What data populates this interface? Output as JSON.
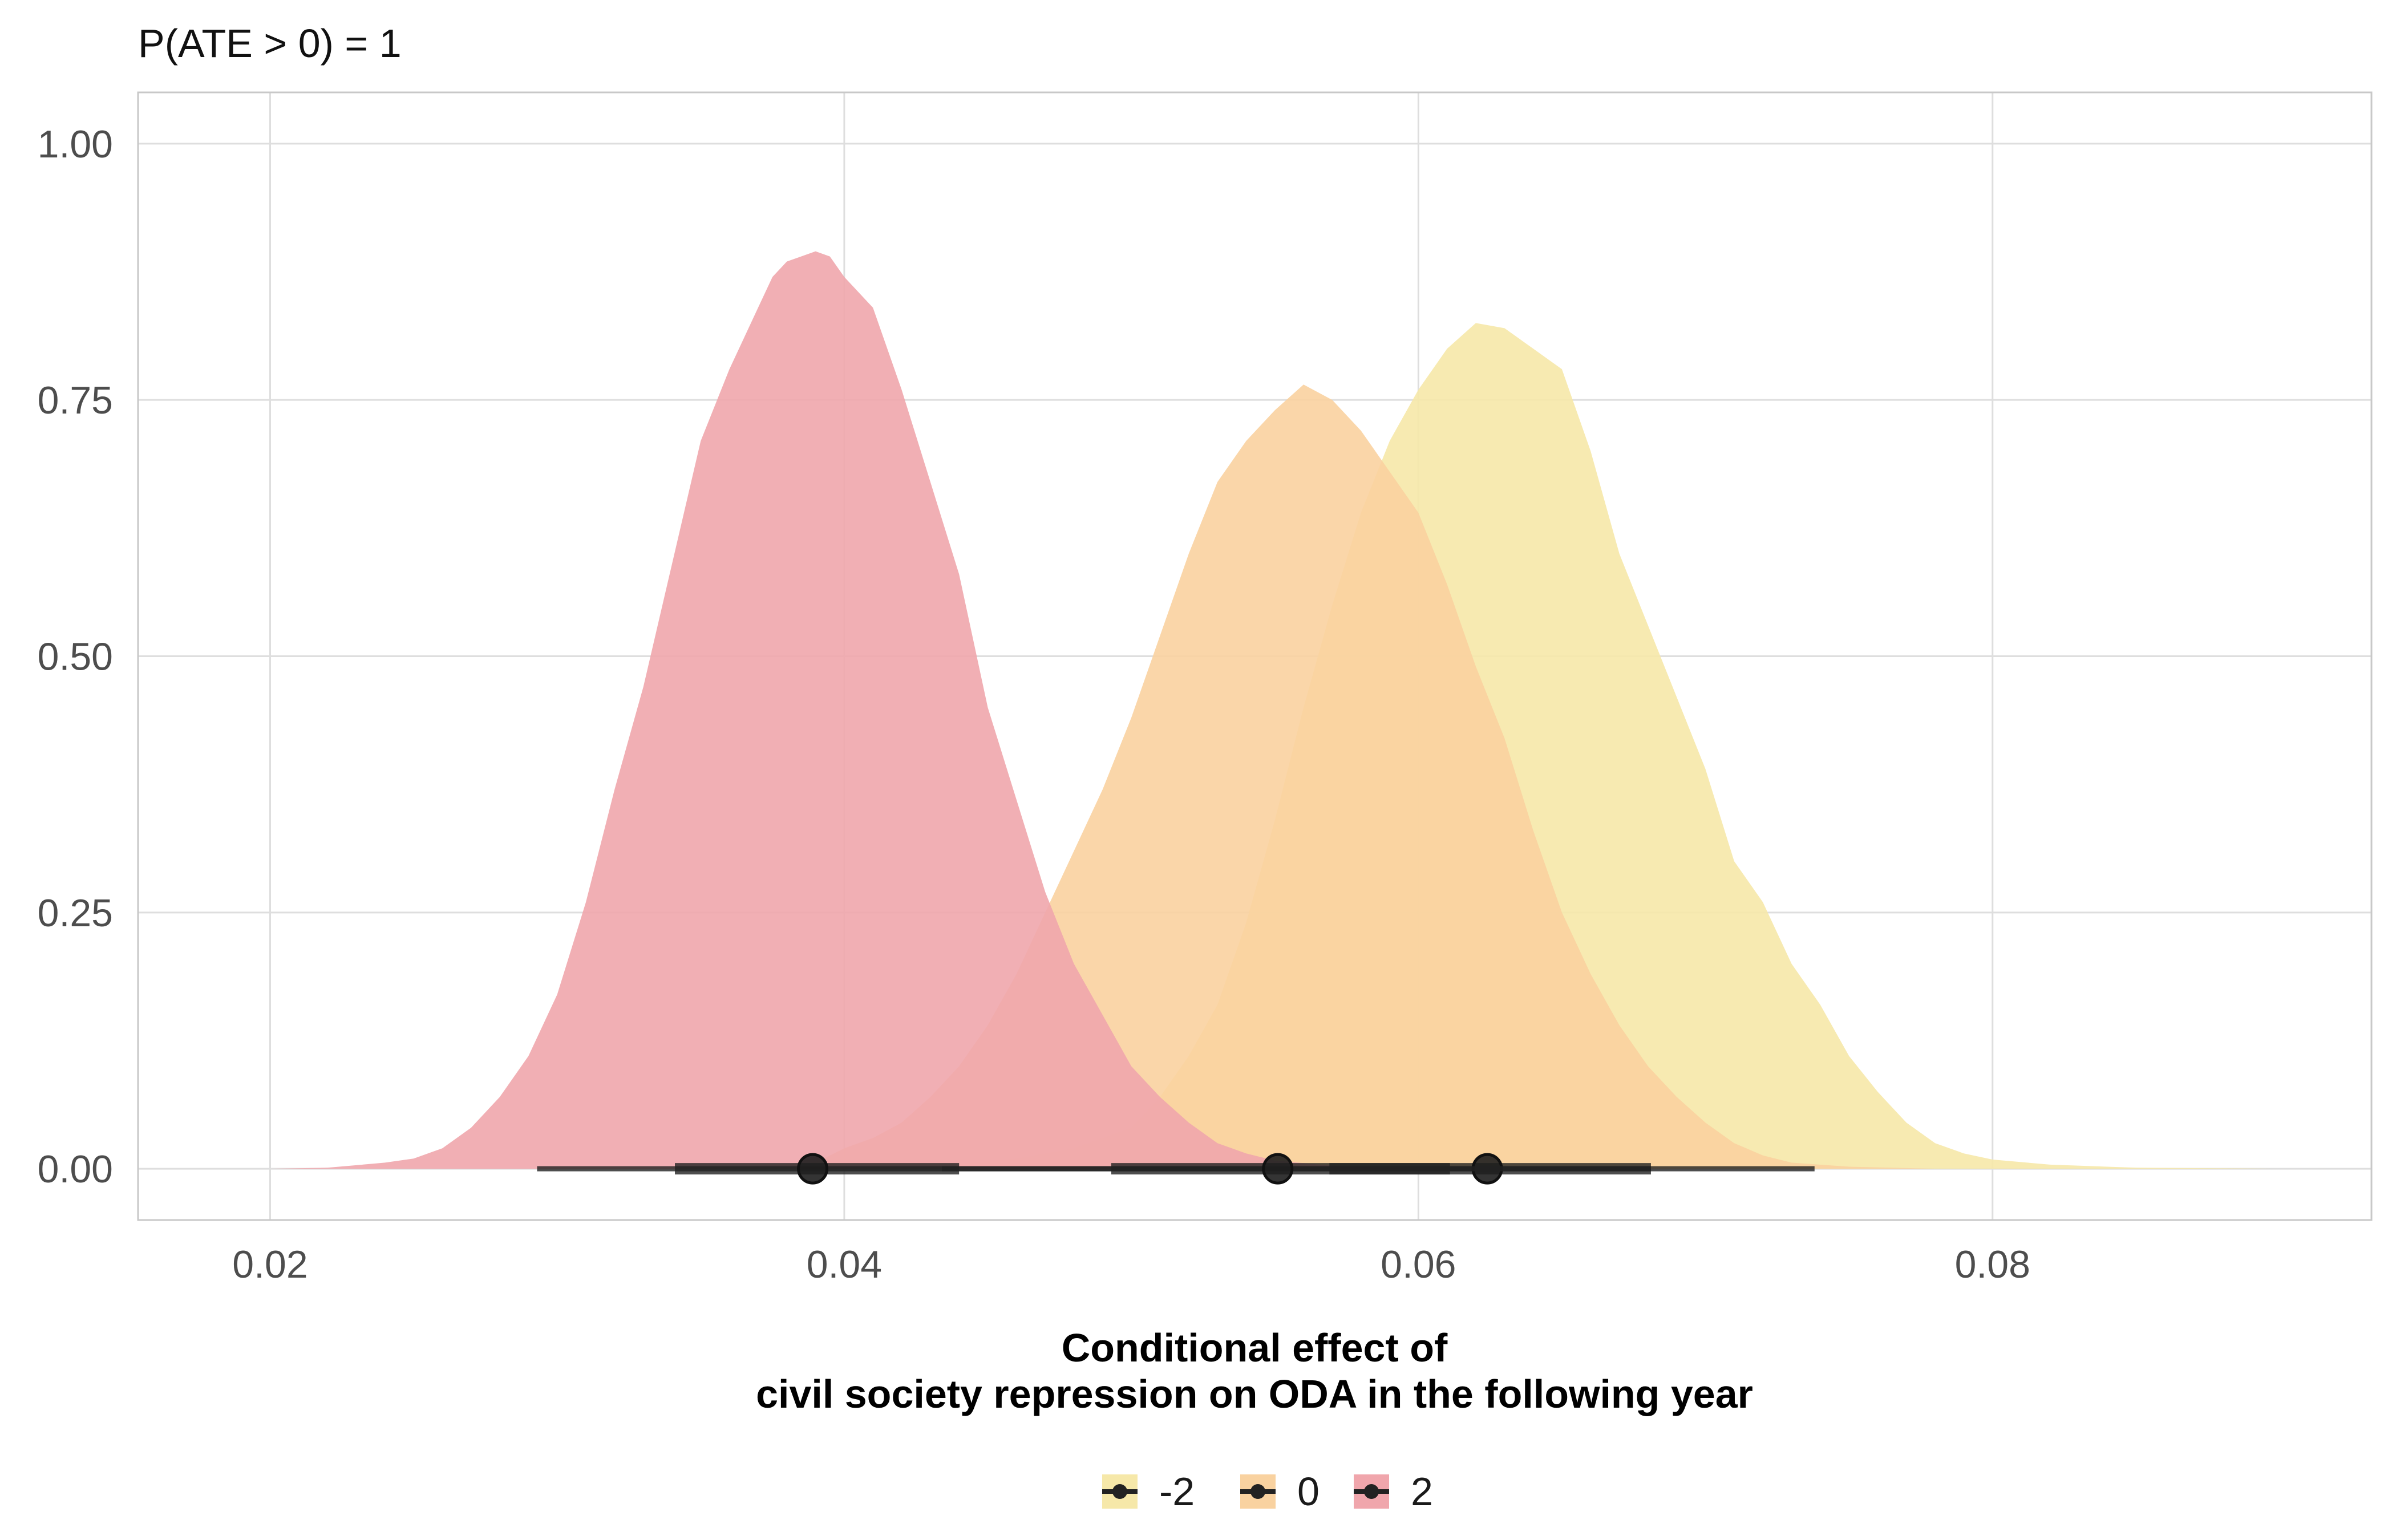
{
  "chart_data": {
    "type": "area",
    "subtitle": "P(ATE > 0) = 1",
    "xlabel_lines": [
      "Conditional effect of",
      "civil society repression on ODA in the following year"
    ],
    "ylabel": "",
    "xlim": [
      0.0154,
      0.0932
    ],
    "ylim": [
      -0.05,
      1.05
    ],
    "x_ticks": [
      0.02,
      0.04,
      0.06,
      0.08
    ],
    "x_tick_labels": [
      "0.02",
      "0.04",
      "0.06",
      "0.08"
    ],
    "y_ticks": [
      0,
      0.25,
      0.5,
      0.75,
      1.0
    ],
    "y_tick_labels": [
      "0.00",
      "0.25",
      "0.50",
      "0.75",
      "1.00"
    ],
    "grid": true,
    "legend_position": "bottom",
    "series": [
      {
        "name": "-2",
        "color": "#f6e8a9",
        "points": [
          [
            0.042,
            0
          ],
          [
            0.044,
            0.005
          ],
          [
            0.046,
            0.01
          ],
          [
            0.048,
            0.02
          ],
          [
            0.05,
            0.04
          ],
          [
            0.051,
            0.07
          ],
          [
            0.052,
            0.11
          ],
          [
            0.053,
            0.16
          ],
          [
            0.054,
            0.24
          ],
          [
            0.055,
            0.34
          ],
          [
            0.056,
            0.45
          ],
          [
            0.057,
            0.55
          ],
          [
            0.058,
            0.64
          ],
          [
            0.059,
            0.71
          ],
          [
            0.06,
            0.76
          ],
          [
            0.061,
            0.8
          ],
          [
            0.062,
            0.825
          ],
          [
            0.063,
            0.82
          ],
          [
            0.064,
            0.8
          ],
          [
            0.065,
            0.78
          ],
          [
            0.066,
            0.7
          ],
          [
            0.067,
            0.6
          ],
          [
            0.068,
            0.53
          ],
          [
            0.069,
            0.46
          ],
          [
            0.07,
            0.39
          ],
          [
            0.071,
            0.3
          ],
          [
            0.072,
            0.26
          ],
          [
            0.073,
            0.2
          ],
          [
            0.074,
            0.16
          ],
          [
            0.075,
            0.11
          ],
          [
            0.076,
            0.075
          ],
          [
            0.077,
            0.045
          ],
          [
            0.078,
            0.025
          ],
          [
            0.079,
            0.015
          ],
          [
            0.08,
            0.009
          ],
          [
            0.082,
            0.004
          ],
          [
            0.085,
            0.001
          ],
          [
            0.09,
            0
          ]
        ],
        "interval_outer": [
          0.0493,
          0.0738
        ],
        "interval_inner": [
          0.0569,
          0.0681
        ],
        "point": 0.0624
      },
      {
        "name": "0",
        "color": "#f9d2a0",
        "points": [
          [
            0.035,
            0
          ],
          [
            0.037,
            0.003
          ],
          [
            0.039,
            0.006
          ],
          [
            0.04,
            0.02
          ],
          [
            0.041,
            0.03
          ],
          [
            0.042,
            0.045
          ],
          [
            0.043,
            0.07
          ],
          [
            0.044,
            0.1
          ],
          [
            0.045,
            0.14
          ],
          [
            0.046,
            0.19
          ],
          [
            0.047,
            0.25
          ],
          [
            0.048,
            0.31
          ],
          [
            0.049,
            0.37
          ],
          [
            0.05,
            0.44
          ],
          [
            0.051,
            0.52
          ],
          [
            0.052,
            0.6
          ],
          [
            0.053,
            0.67
          ],
          [
            0.054,
            0.71
          ],
          [
            0.055,
            0.74
          ],
          [
            0.056,
            0.765
          ],
          [
            0.057,
            0.75
          ],
          [
            0.058,
            0.72
          ],
          [
            0.059,
            0.68
          ],
          [
            0.06,
            0.64
          ],
          [
            0.061,
            0.57
          ],
          [
            0.062,
            0.49
          ],
          [
            0.063,
            0.42
          ],
          [
            0.064,
            0.33
          ],
          [
            0.065,
            0.25
          ],
          [
            0.066,
            0.19
          ],
          [
            0.067,
            0.14
          ],
          [
            0.068,
            0.1
          ],
          [
            0.069,
            0.07
          ],
          [
            0.07,
            0.045
          ],
          [
            0.071,
            0.025
          ],
          [
            0.072,
            0.013
          ],
          [
            0.073,
            0.006
          ],
          [
            0.075,
            0.002
          ],
          [
            0.078,
            0
          ]
        ],
        "interval_outer": [
          0.0434,
          0.0681
        ],
        "interval_inner": [
          0.0493,
          0.0611
        ],
        "point": 0.0551
      },
      {
        "name": "2",
        "color": "#f0a6ac",
        "points": [
          [
            0.02,
            0
          ],
          [
            0.022,
            0.001
          ],
          [
            0.024,
            0.006
          ],
          [
            0.025,
            0.01
          ],
          [
            0.026,
            0.02
          ],
          [
            0.027,
            0.04
          ],
          [
            0.028,
            0.07
          ],
          [
            0.029,
            0.11
          ],
          [
            0.03,
            0.17
          ],
          [
            0.031,
            0.26
          ],
          [
            0.032,
            0.37
          ],
          [
            0.033,
            0.47
          ],
          [
            0.034,
            0.59
          ],
          [
            0.035,
            0.71
          ],
          [
            0.036,
            0.78
          ],
          [
            0.037,
            0.84
          ],
          [
            0.0375,
            0.87
          ],
          [
            0.038,
            0.885
          ],
          [
            0.039,
            0.895
          ],
          [
            0.0395,
            0.89
          ],
          [
            0.04,
            0.87
          ],
          [
            0.041,
            0.84
          ],
          [
            0.042,
            0.76
          ],
          [
            0.043,
            0.67
          ],
          [
            0.044,
            0.58
          ],
          [
            0.045,
            0.45
          ],
          [
            0.046,
            0.36
          ],
          [
            0.047,
            0.27
          ],
          [
            0.048,
            0.2
          ],
          [
            0.049,
            0.15
          ],
          [
            0.05,
            0.1
          ],
          [
            0.051,
            0.07
          ],
          [
            0.052,
            0.045
          ],
          [
            0.053,
            0.025
          ],
          [
            0.054,
            0.015
          ],
          [
            0.055,
            0.008
          ],
          [
            0.057,
            0.003
          ],
          [
            0.06,
            0
          ]
        ],
        "interval_outer": [
          0.0293,
          0.0493
        ],
        "interval_inner": [
          0.0341,
          0.044
        ],
        "point": 0.0389
      }
    ]
  }
}
